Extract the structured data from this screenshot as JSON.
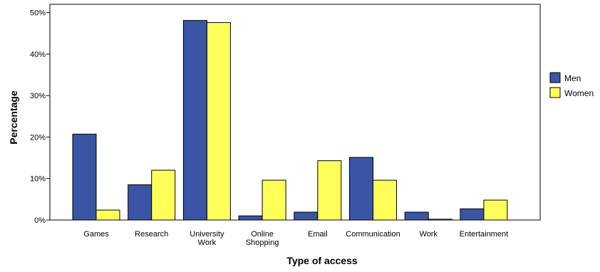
{
  "chart_data": {
    "type": "bar",
    "title": "",
    "xlabel": "Type of access",
    "ylabel": "Percentage",
    "categories": [
      [
        "Games"
      ],
      [
        "Research"
      ],
      [
        "University",
        "Work"
      ],
      [
        "Online",
        "Shopping"
      ],
      [
        "Email"
      ],
      [
        "Communication"
      ],
      [
        "Work"
      ],
      [
        "Entertainment"
      ]
    ],
    "series": [
      {
        "name": "Men",
        "color": "#3a55a4",
        "values": [
          20.7,
          8.5,
          48.1,
          1.0,
          1.9,
          15.1,
          1.9,
          2.7
        ]
      },
      {
        "name": "Women",
        "color": "#ffff5a",
        "values": [
          2.4,
          12.0,
          47.6,
          9.6,
          14.3,
          9.6,
          0.2,
          4.8
        ]
      }
    ],
    "ylim": [
      0,
      52
    ],
    "y_ticks": [
      0,
      10,
      20,
      30,
      40,
      50
    ],
    "y_tick_format": "percent",
    "grid": false,
    "legend_position": "right"
  }
}
